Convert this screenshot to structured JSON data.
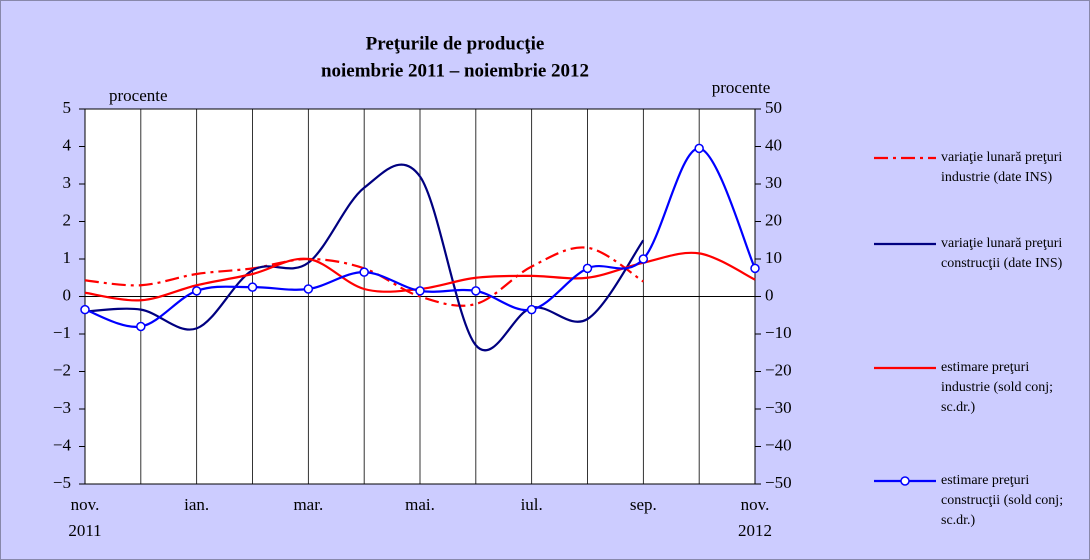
{
  "chart_data": {
    "type": "line",
    "title": "Preţurile de producţie",
    "subtitle": "noiembrie 2011 – noiembrie 2012",
    "y_label": "procente",
    "y2_label": "procente",
    "categories": [
      "nov.",
      null,
      "ian.",
      null,
      "mar.",
      null,
      "mai.",
      null,
      "iul.",
      null,
      "sep.",
      null,
      "nov."
    ],
    "category_years": [
      "2011",
      null,
      null,
      null,
      null,
      null,
      null,
      null,
      null,
      null,
      null,
      null,
      "2012"
    ],
    "ylim": [
      -5,
      5
    ],
    "yticks": [
      {
        "value": -5,
        "label": "−5"
      },
      {
        "value": -4,
        "label": "−4"
      },
      {
        "value": -3,
        "label": "−3"
      },
      {
        "value": -2,
        "label": "−2"
      },
      {
        "value": -1,
        "label": "−1"
      },
      0,
      1,
      2,
      3,
      4,
      5
    ],
    "y2lim": [
      -50,
      50
    ],
    "y2ticks": [
      {
        "value": -50,
        "label": "−50"
      },
      {
        "value": -40,
        "label": "−40"
      },
      {
        "value": -30,
        "label": "−30"
      },
      {
        "value": -20,
        "label": "−20"
      },
      {
        "value": -10,
        "label": "−10"
      },
      0,
      10,
      20,
      30,
      40,
      50
    ],
    "grid": true,
    "legend": "right",
    "series": [
      {
        "name": "variaţie lunară preţuri industrie (date INS)",
        "color": "#ff0000",
        "style": "dashdot",
        "values": [
          0.43,
          0.3,
          0.6,
          0.75,
          1.0,
          0.75,
          0.0,
          -0.2,
          0.8,
          1.3,
          0.4,
          null,
          null
        ]
      },
      {
        "name": "variaţie lunară preţuri construcţii (date INS)",
        "color": "#000080",
        "style": "solid",
        "values": [
          -0.4,
          -0.35,
          -0.85,
          0.7,
          0.9,
          2.9,
          3.2,
          -1.3,
          -0.3,
          -0.6,
          1.5,
          null,
          null
        ]
      },
      {
        "name": "estimare preţuri industrie (sold conj; sc.dr.)",
        "color": "#ff0000",
        "style": "solid",
        "axis": "y2",
        "values": [
          1,
          -1,
          3,
          6,
          10,
          2,
          2,
          5,
          5.5,
          5,
          9,
          11.5,
          4.5
        ]
      },
      {
        "name": "estimare preţuri construcţii (sold conj; sc.dr.)",
        "color": "#0000ff",
        "style": "solid",
        "markers": true,
        "axis": "y2",
        "values": [
          -3.5,
          -8,
          1.5,
          2.5,
          2,
          6.5,
          1.5,
          1.5,
          -3.5,
          7.5,
          10,
          39.5,
          7.5
        ]
      }
    ]
  }
}
